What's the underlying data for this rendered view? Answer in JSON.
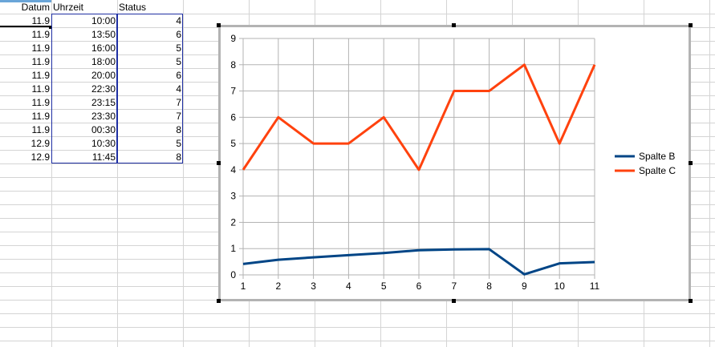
{
  "sheet": {
    "headers": {
      "col_a": "Datum",
      "col_b": "Uhrzeit",
      "col_c": "Status"
    },
    "rows": [
      {
        "datum": "11.9",
        "uhrzeit": "10:00",
        "status": "4"
      },
      {
        "datum": "11.9",
        "uhrzeit": "13:50",
        "status": "6"
      },
      {
        "datum": "11.9",
        "uhrzeit": "16:00",
        "status": "5"
      },
      {
        "datum": "11.9",
        "uhrzeit": "18:00",
        "status": "5"
      },
      {
        "datum": "11.9",
        "uhrzeit": "20:00",
        "status": "6"
      },
      {
        "datum": "11.9",
        "uhrzeit": "22:30",
        "status": "4"
      },
      {
        "datum": "11.9",
        "uhrzeit": "23:15",
        "status": "7"
      },
      {
        "datum": "11.9",
        "uhrzeit": "23:30",
        "status": "7"
      },
      {
        "datum": "11.9",
        "uhrzeit": "00:30",
        "status": "8"
      },
      {
        "datum": "12.9",
        "uhrzeit": "10:30",
        "status": "5"
      },
      {
        "datum": "12.9",
        "uhrzeit": "11:45",
        "status": "8"
      }
    ]
  },
  "chart_data": {
    "type": "line",
    "x": [
      1,
      2,
      3,
      4,
      5,
      6,
      7,
      8,
      9,
      10,
      11
    ],
    "xlim": [
      1,
      11
    ],
    "ylim": [
      0,
      9
    ],
    "yticks": [
      0,
      1,
      2,
      3,
      4,
      5,
      6,
      7,
      8,
      9
    ],
    "grid": true,
    "legend_position": "right",
    "series": [
      {
        "name": "Spalte B",
        "color": "#004586",
        "values": [
          0.417,
          0.576,
          0.667,
          0.75,
          0.833,
          0.938,
          0.969,
          0.979,
          0.021,
          0.438,
          0.49
        ]
      },
      {
        "name": "Spalte C",
        "color": "#ff420e",
        "values": [
          4,
          6,
          5,
          5,
          6,
          4,
          7,
          7,
          8,
          5,
          8
        ]
      }
    ]
  }
}
